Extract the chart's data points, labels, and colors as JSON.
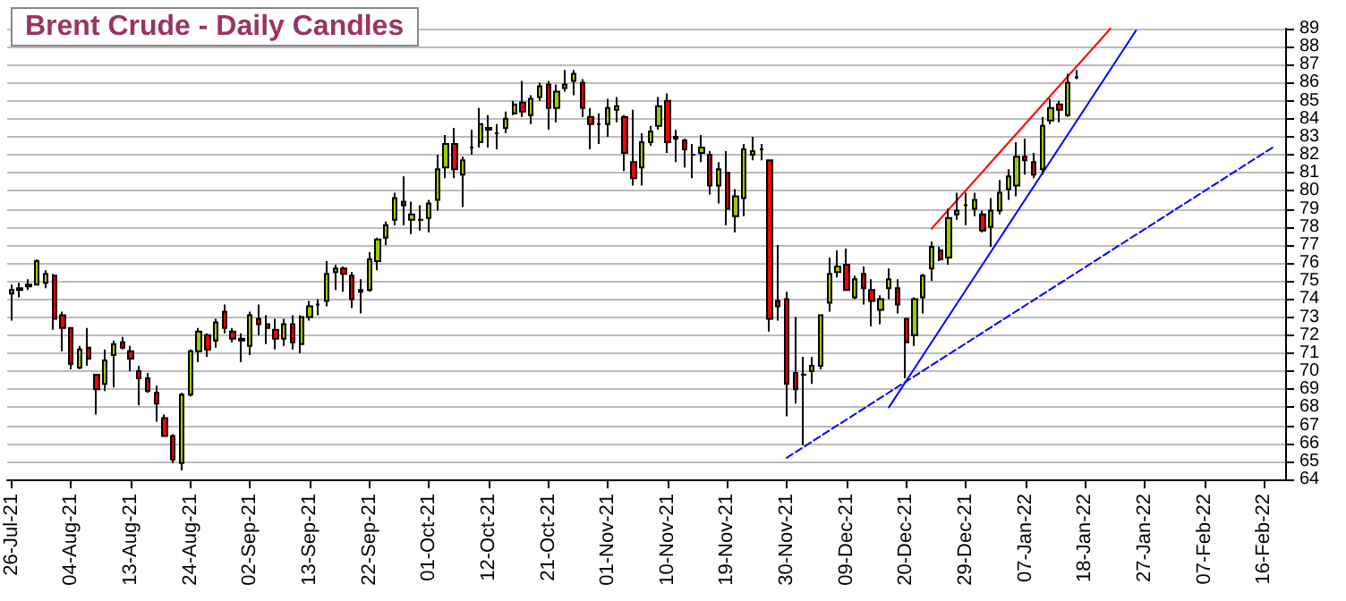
{
  "chart_data": {
    "type": "candlestick",
    "title": "Brent Crude - Daily Candles",
    "categories": [
      "26-Jul-21",
      null,
      null,
      null,
      null,
      null,
      null,
      "04-Aug-21",
      null,
      null,
      null,
      null,
      null,
      null,
      "13-Aug-21",
      null,
      null,
      null,
      null,
      null,
      null,
      "24-Aug-21",
      null,
      null,
      null,
      null,
      null,
      null,
      "02-Sep-21",
      null,
      null,
      null,
      null,
      null,
      null,
      "13-Sep-21",
      null,
      null,
      null,
      null,
      null,
      null,
      "22-Sep-21",
      null,
      null,
      null,
      null,
      null,
      null,
      "01-Oct-21",
      null,
      null,
      null,
      null,
      null,
      null,
      "12-Oct-21",
      null,
      null,
      null,
      null,
      null,
      null,
      "21-Oct-21",
      null,
      null,
      null,
      null,
      null,
      null,
      "01-Nov-21",
      null,
      null,
      null,
      null,
      null,
      null,
      "10-Nov-21",
      null,
      null,
      null,
      null,
      null,
      null,
      "19-Nov-21",
      null,
      null,
      null,
      null,
      null,
      null,
      "30-Nov-21",
      null,
      null,
      null,
      null,
      null,
      null,
      "09-Dec-21",
      null,
      null,
      null,
      null,
      null,
      null,
      "20-Dec-21",
      null,
      null,
      null,
      null,
      null,
      null,
      "29-Dec-21",
      null,
      null,
      null,
      null,
      null,
      null,
      "07-Jan-22",
      null,
      null,
      null,
      null,
      null,
      null,
      "18-Jan-22",
      null,
      null,
      null,
      null,
      null,
      null,
      "27-Jan-22",
      null,
      null,
      null,
      null,
      null,
      null,
      "07-Feb-22",
      null,
      null,
      null,
      null,
      null,
      null,
      "16-Feb-22",
      null,
      null
    ],
    "colors": [
      "#99cc00",
      "#000000",
      "#000000",
      "#99cc00",
      "#99cc00",
      "#ff0000",
      "#ff0000",
      "#ff0000",
      "#99cc00",
      "#ff0000",
      "#ff0000",
      "#99cc00",
      "#99cc00",
      "#ff0000",
      "#ff0000",
      "#ff0000",
      "#ff0000",
      "#ff0000",
      "#ff0000",
      "#ff0000",
      "#99cc00",
      "#99cc00",
      "#99cc00",
      "#ff0000",
      "#99cc00",
      "#ff0000",
      "#ff0000",
      "#000000",
      "#99cc00",
      "#ff0000",
      "#ff0000",
      "#ff0000",
      "#99cc00",
      "#ff0000",
      "#99cc00",
      "#99cc00",
      "#000000",
      "#99cc00",
      "#99cc00",
      "#ff0000",
      "#ff0000",
      "#000000",
      "#99cc00",
      "#99cc00",
      "#99cc00",
      "#99cc00",
      "#ff0000",
      "#99cc00",
      "#000000",
      "#99cc00",
      "#99cc00",
      "#99cc00",
      "#ff0000",
      "#99cc00",
      "#000000",
      "#99cc00",
      "#000000",
      "#000000",
      "#99cc00",
      "#99cc00",
      "#ff0000",
      "#99cc00",
      "#99cc00",
      "#ff0000",
      "#99cc00",
      "#99cc00",
      "#99cc00",
      "#ff0000",
      "#ff0000",
      "#000000",
      "#99cc00",
      "#99cc00",
      "#ff0000",
      "#ff0000",
      "#99cc00",
      "#99cc00",
      "#99cc00",
      "#ff0000",
      "#000000",
      "#ff0000",
      "#000000",
      "#99cc00",
      "#ff0000",
      "#99cc00",
      "#ff0000",
      "#99cc00",
      "#99cc00",
      "#99cc00",
      "#000000",
      "#ff0000",
      "#ff0000",
      "#ff0000",
      "#ff0000",
      "#000000",
      "#99cc00",
      "#99cc00",
      "#99cc00",
      "#99cc00",
      "#ff0000",
      "#99cc00",
      "#ff0000",
      "#ff0000",
      "#99cc00",
      "#99cc00",
      "#ff0000",
      "#ff0000",
      "#99cc00",
      "#99cc00",
      "#99cc00",
      "#ff0000",
      "#99cc00",
      "#99cc00",
      "#000000",
      "#99cc00",
      "#ff0000",
      "#99cc00",
      "#99cc00",
      "#99cc00",
      "#99cc00",
      "#ff0000",
      "#ff0000",
      "#99cc00",
      "#99cc00",
      "#ff0000",
      "#99cc00",
      "#000000",
      null,
      null,
      null,
      null,
      null,
      null,
      null,
      null,
      null,
      null,
      null,
      null,
      null,
      null,
      null,
      null,
      null,
      null,
      null,
      null,
      null,
      null,
      null,
      null
    ],
    "ohlc": [
      [
        74.3,
        74.8,
        72.8,
        74.5
      ],
      [
        74.5,
        74.9,
        74.1,
        74.6
      ],
      [
        74.7,
        75.1,
        74.5,
        74.8
      ],
      [
        74.8,
        76.2,
        74.8,
        76.1
      ],
      [
        74.9,
        75.6,
        74.6,
        75.4
      ],
      [
        75.3,
        75.4,
        72.3,
        72.9
      ],
      [
        73.1,
        73.3,
        71.1,
        72.4
      ],
      [
        72.4,
        72.4,
        70.1,
        70.4
      ],
      [
        70.2,
        71.4,
        70.1,
        71.2
      ],
      [
        71.3,
        72.4,
        70.3,
        70.7
      ],
      [
        69.8,
        69.8,
        67.6,
        69.0
      ],
      [
        69.3,
        71.2,
        68.9,
        70.6
      ],
      [
        70.9,
        71.7,
        69.1,
        71.5
      ],
      [
        71.6,
        71.9,
        71.2,
        71.3
      ],
      [
        71.1,
        71.4,
        70.0,
        70.7
      ],
      [
        70.0,
        70.3,
        68.1,
        69.6
      ],
      [
        69.6,
        69.9,
        68.8,
        68.9
      ],
      [
        68.8,
        69.2,
        67.2,
        68.2
      ],
      [
        67.4,
        67.6,
        66.4,
        66.4
      ],
      [
        66.4,
        66.5,
        64.9,
        65.1
      ],
      [
        64.9,
        68.8,
        64.5,
        68.7
      ],
      [
        68.7,
        71.2,
        68.6,
        71.1
      ],
      [
        71.1,
        72.4,
        70.5,
        72.2
      ],
      [
        72.0,
        72.1,
        70.8,
        71.2
      ],
      [
        71.7,
        72.9,
        71.3,
        72.7
      ],
      [
        73.3,
        73.7,
        72.1,
        72.4
      ],
      [
        72.2,
        72.4,
        71.6,
        71.8
      ],
      [
        71.8,
        72.1,
        70.5,
        71.7
      ],
      [
        71.4,
        73.3,
        70.9,
        73.1
      ],
      [
        72.9,
        73.7,
        72.0,
        72.6
      ],
      [
        72.6,
        73.1,
        71.5,
        72.4
      ],
      [
        72.3,
        72.9,
        71.2,
        71.8
      ],
      [
        71.8,
        72.9,
        71.4,
        72.6
      ],
      [
        72.6,
        73.1,
        71.2,
        71.6
      ],
      [
        71.5,
        73.1,
        71.0,
        73.0
      ],
      [
        73.0,
        73.9,
        72.8,
        73.6
      ],
      [
        73.7,
        74.0,
        73.1,
        73.7
      ],
      [
        73.9,
        76.1,
        73.6,
        75.4
      ],
      [
        75.5,
        75.9,
        74.5,
        75.7
      ],
      [
        75.7,
        75.8,
        74.4,
        75.4
      ],
      [
        75.3,
        75.5,
        73.5,
        74.0
      ],
      [
        74.4,
        75.1,
        73.2,
        74.5
      ],
      [
        74.5,
        76.6,
        74.4,
        76.2
      ],
      [
        76.1,
        77.4,
        75.6,
        77.3
      ],
      [
        77.4,
        78.3,
        77.0,
        78.1
      ],
      [
        78.4,
        79.9,
        78.1,
        79.6
      ],
      [
        79.4,
        80.8,
        78.1,
        79.2
      ],
      [
        78.4,
        79.4,
        77.6,
        78.7
      ],
      [
        78.4,
        79.2,
        77.8,
        78.4
      ],
      [
        78.5,
        79.5,
        77.7,
        79.3
      ],
      [
        79.5,
        82.0,
        78.9,
        81.2
      ],
      [
        81.3,
        83.1,
        80.7,
        82.6
      ],
      [
        82.6,
        83.5,
        80.7,
        81.2
      ],
      [
        80.9,
        81.9,
        79.1,
        81.7
      ],
      [
        82.4,
        83.4,
        82.0,
        82.4
      ],
      [
        82.7,
        84.6,
        82.4,
        83.7
      ],
      [
        83.4,
        84.2,
        82.4,
        83.5
      ],
      [
        83.2,
        83.7,
        82.3,
        83.2
      ],
      [
        83.5,
        84.4,
        83.2,
        84.0
      ],
      [
        84.3,
        85.0,
        84.2,
        84.8
      ],
      [
        84.9,
        86.1,
        84.1,
        84.4
      ],
      [
        84.2,
        85.3,
        83.7,
        85.1
      ],
      [
        85.2,
        86.0,
        85.0,
        85.8
      ],
      [
        85.9,
        86.1,
        83.4,
        84.6
      ],
      [
        84.6,
        85.9,
        83.8,
        85.5
      ],
      [
        85.7,
        86.7,
        85.5,
        85.9
      ],
      [
        86.1,
        86.7,
        85.3,
        86.5
      ],
      [
        86.0,
        86.2,
        84.1,
        84.6
      ],
      [
        84.1,
        84.6,
        82.3,
        83.7
      ],
      [
        83.7,
        84.3,
        82.6,
        83.7
      ],
      [
        83.7,
        85.1,
        83.0,
        84.6
      ],
      [
        84.5,
        85.2,
        83.8,
        84.7
      ],
      [
        84.1,
        84.2,
        81.1,
        82.1
      ],
      [
        81.6,
        84.5,
        80.3,
        80.7
      ],
      [
        81.3,
        83.2,
        80.3,
        82.7
      ],
      [
        82.7,
        83.6,
        82.5,
        83.3
      ],
      [
        83.6,
        85.2,
        83.4,
        84.7
      ],
      [
        85.0,
        85.4,
        82.1,
        82.7
      ],
      [
        83.0,
        83.4,
        81.6,
        82.9
      ],
      [
        82.8,
        82.9,
        81.3,
        82.3
      ],
      [
        82.0,
        82.6,
        80.7,
        82.0
      ],
      [
        82.1,
        83.1,
        81.6,
        82.4
      ],
      [
        82.0,
        82.2,
        79.8,
        80.3
      ],
      [
        80.3,
        81.6,
        79.3,
        81.2
      ],
      [
        81.0,
        82.2,
        78.1,
        79.0
      ],
      [
        78.6,
        80.1,
        77.7,
        79.7
      ],
      [
        79.6,
        82.6,
        78.6,
        82.3
      ],
      [
        82.0,
        83.0,
        81.7,
        82.2
      ],
      [
        82.3,
        82.6,
        81.7,
        82.3
      ],
      [
        81.7,
        81.7,
        72.2,
        72.9
      ],
      [
        73.9,
        77.0,
        72.8,
        73.6
      ],
      [
        74.0,
        74.4,
        67.5,
        69.3
      ],
      [
        69.9,
        73.0,
        68.2,
        69.0
      ],
      [
        69.8,
        70.8,
        65.9,
        69.8
      ],
      [
        70.0,
        70.8,
        69.3,
        70.3
      ],
      [
        70.3,
        73.1,
        70.1,
        73.1
      ],
      [
        73.8,
        76.3,
        73.3,
        75.4
      ],
      [
        75.5,
        76.7,
        75.2,
        75.8
      ],
      [
        75.9,
        76.8,
        74.5,
        74.5
      ],
      [
        74.1,
        75.3,
        74.0,
        75.1
      ],
      [
        75.4,
        75.8,
        73.7,
        74.6
      ],
      [
        74.5,
        75.1,
        72.5,
        73.9
      ],
      [
        73.4,
        74.2,
        72.6,
        74.0
      ],
      [
        74.6,
        75.7,
        74.0,
        75.1
      ],
      [
        74.6,
        75.1,
        73.2,
        73.7
      ],
      [
        72.9,
        72.9,
        69.6,
        71.6
      ],
      [
        72.0,
        74.1,
        71.4,
        74.0
      ],
      [
        74.1,
        75.4,
        73.2,
        75.3
      ],
      [
        75.7,
        77.2,
        75.0,
        76.9
      ],
      [
        76.7,
        76.9,
        76.1,
        76.2
      ],
      [
        76.3,
        79.0,
        75.9,
        78.5
      ],
      [
        78.7,
        79.9,
        78.4,
        78.9
      ],
      [
        79.2,
        79.9,
        78.1,
        79.2
      ],
      [
        79.0,
        79.9,
        78.6,
        79.5
      ],
      [
        78.7,
        78.9,
        77.7,
        77.8
      ],
      [
        78.0,
        79.6,
        76.9,
        78.9
      ],
      [
        78.9,
        80.6,
        78.7,
        79.9
      ],
      [
        80.1,
        81.2,
        79.5,
        80.8
      ],
      [
        80.3,
        82.7,
        79.7,
        81.9
      ],
      [
        81.9,
        82.9,
        80.9,
        81.7
      ],
      [
        81.6,
        82.1,
        80.7,
        80.9
      ],
      [
        81.2,
        84.1,
        80.9,
        83.6
      ],
      [
        83.9,
        85.1,
        83.7,
        84.6
      ],
      [
        84.8,
        85.0,
        83.8,
        84.5
      ],
      [
        84.2,
        86.5,
        84.1,
        86.0
      ],
      [
        86.3,
        86.7,
        86.2,
        86.3
      ],
      null,
      null,
      null,
      null,
      null,
      null,
      null,
      null,
      null,
      null,
      null,
      null,
      null,
      null,
      null,
      null,
      null,
      null,
      null,
      null,
      null,
      null,
      null,
      null
    ],
    "series": [
      {
        "type": "line",
        "color": "#ff0000",
        "values": [
          null,
          null,
          null,
          null,
          null,
          null,
          null,
          null,
          null,
          null,
          null,
          null,
          null,
          null,
          null,
          null,
          null,
          null,
          null,
          null,
          null,
          null,
          null,
          null,
          null,
          null,
          null,
          null,
          null,
          null,
          null,
          null,
          null,
          null,
          null,
          null,
          null,
          null,
          null,
          null,
          null,
          null,
          null,
          null,
          null,
          null,
          null,
          null,
          null,
          null,
          null,
          null,
          null,
          null,
          null,
          null,
          null,
          null,
          null,
          null,
          null,
          null,
          null,
          null,
          null,
          null,
          null,
          null,
          null,
          null,
          null,
          null,
          null,
          null,
          null,
          null,
          null,
          null,
          null,
          null,
          null,
          null,
          null,
          null,
          null,
          null,
          null,
          null,
          null,
          null,
          null,
          null,
          null,
          null,
          null,
          null,
          null,
          null,
          null,
          null,
          null,
          null,
          null,
          null,
          null,
          null,
          null,
          null,
          77.9,
          null,
          null,
          null,
          null,
          null,
          null,
          null,
          null,
          null,
          null,
          null,
          null,
          null,
          null,
          null,
          null,
          null,
          null,
          null,
          null,
          89.0,
          null,
          null,
          null,
          null,
          null,
          null,
          null,
          null,
          null,
          null,
          null,
          null,
          null,
          null,
          null,
          null,
          null,
          null,
          null,
          null
        ]
      },
      {
        "type": "line",
        "color": "#0000ff",
        "values": [
          null,
          null,
          null,
          null,
          null,
          null,
          null,
          null,
          null,
          null,
          null,
          null,
          null,
          null,
          null,
          null,
          null,
          null,
          null,
          null,
          null,
          null,
          null,
          null,
          null,
          null,
          null,
          null,
          null,
          null,
          null,
          null,
          null,
          null,
          null,
          null,
          null,
          null,
          null,
          null,
          null,
          null,
          null,
          null,
          null,
          null,
          null,
          null,
          null,
          null,
          null,
          null,
          null,
          null,
          null,
          null,
          null,
          null,
          null,
          null,
          null,
          null,
          null,
          null,
          null,
          null,
          null,
          null,
          null,
          null,
          null,
          null,
          null,
          null,
          null,
          null,
          null,
          null,
          null,
          null,
          null,
          null,
          null,
          null,
          null,
          null,
          null,
          null,
          null,
          null,
          null,
          null,
          null,
          null,
          null,
          null,
          null,
          null,
          null,
          null,
          null,
          null,
          null,
          68.0,
          null,
          null,
          null,
          null,
          null,
          null,
          null,
          null,
          null,
          null,
          null,
          null,
          null,
          null,
          null,
          null,
          null,
          null,
          null,
          null,
          null,
          null,
          null,
          null,
          null,
          null,
          null,
          null,
          88.9,
          null,
          null,
          null,
          null,
          null,
          null,
          null,
          null,
          null,
          null,
          null,
          null,
          null,
          null,
          null,
          null,
          null
        ]
      },
      {
        "type": "line",
        "color": "#0000ff",
        "line_style": "dashed",
        "values": [
          null,
          null,
          null,
          null,
          null,
          null,
          null,
          null,
          null,
          null,
          null,
          null,
          null,
          null,
          null,
          null,
          null,
          null,
          null,
          null,
          null,
          null,
          null,
          null,
          null,
          null,
          null,
          null,
          null,
          null,
          null,
          null,
          null,
          null,
          null,
          null,
          null,
          null,
          null,
          null,
          null,
          null,
          null,
          null,
          null,
          null,
          null,
          null,
          null,
          null,
          null,
          null,
          null,
          null,
          null,
          null,
          null,
          null,
          null,
          null,
          null,
          null,
          null,
          null,
          null,
          null,
          null,
          null,
          null,
          null,
          null,
          null,
          null,
          null,
          null,
          null,
          null,
          null,
          null,
          null,
          null,
          null,
          null,
          null,
          null,
          null,
          null,
          null,
          null,
          null,
          null,
          65.2,
          null,
          null,
          null,
          null,
          null,
          null,
          null,
          null,
          null,
          null,
          null,
          null,
          null,
          null,
          null,
          null,
          null,
          null,
          null,
          null,
          null,
          null,
          null,
          null,
          null,
          null,
          null,
          null,
          null,
          null,
          null,
          null,
          null,
          null,
          null,
          null,
          null,
          null,
          null,
          null,
          null,
          null,
          null,
          null,
          null,
          null,
          null,
          null,
          null,
          null,
          null,
          null,
          null,
          null,
          null,
          null,
          82.4,
          null
        ]
      }
    ],
    "ylim": [
      64,
      89
    ],
    "yticks": [
      64,
      65,
      66,
      67,
      68,
      69,
      70,
      71,
      72,
      73,
      74,
      75,
      76,
      77,
      78,
      79,
      80,
      81,
      82,
      83,
      84,
      85,
      86,
      87,
      88,
      89
    ],
    "grid": "y",
    "marker": "none"
  }
}
